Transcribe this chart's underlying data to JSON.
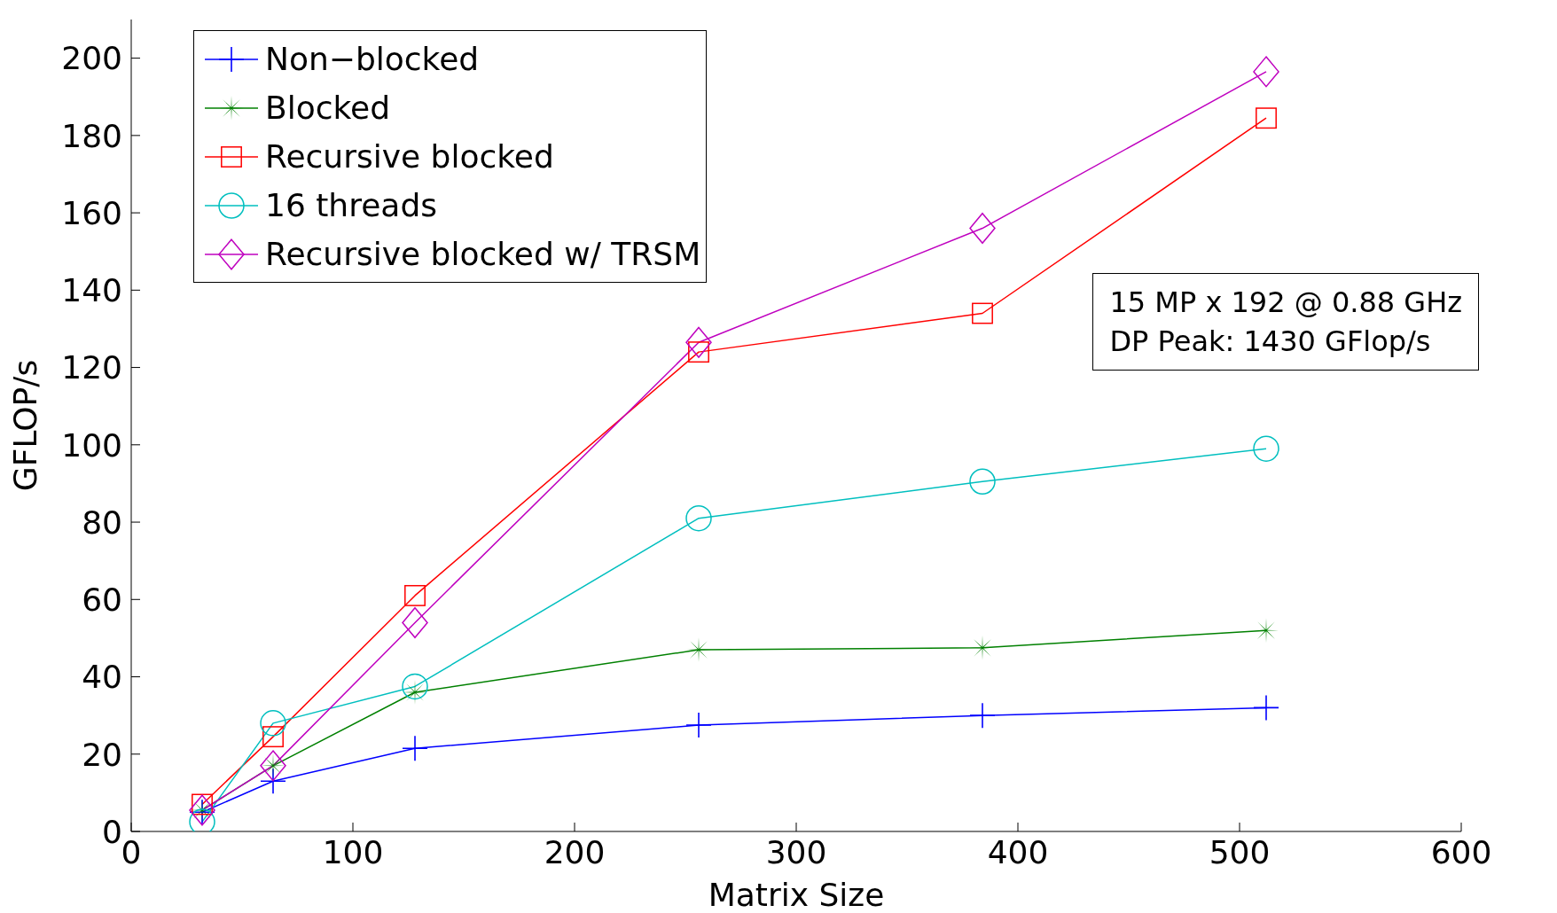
{
  "chart_data": {
    "type": "line",
    "xlabel": "Matrix Size",
    "ylabel": "GFLOP/s",
    "x": [
      32,
      64,
      128,
      256,
      384,
      512
    ],
    "series": [
      {
        "name": "Non−blocked",
        "color": "#0000ff",
        "marker": "cross",
        "values": [
          5,
          13,
          21.5,
          27.5,
          30,
          32
        ]
      },
      {
        "name": "Blocked",
        "color": "#008000",
        "marker": "star",
        "values": [
          5.5,
          17,
          36,
          47,
          47.5,
          52
        ]
      },
      {
        "name": "Recursive blocked",
        "color": "#ff0000",
        "marker": "square",
        "values": [
          7,
          24.5,
          61,
          124,
          134,
          184.5
        ]
      },
      {
        "name": "16 threads",
        "color": "#00bfbf",
        "marker": "circle",
        "values": [
          2.5,
          28,
          37.5,
          81,
          90.5,
          99
        ]
      },
      {
        "name": "Recursive blocked w/ TRSM",
        "color": "#bf00bf",
        "marker": "diamond",
        "values": [
          5.5,
          17,
          54,
          126.5,
          156,
          196.5
        ]
      }
    ],
    "xlim": [
      0,
      600
    ],
    "xticks": [
      0,
      100,
      200,
      300,
      400,
      500,
      600
    ],
    "ylim": [
      0,
      210
    ],
    "yticks": [
      0,
      20,
      40,
      60,
      80,
      100,
      120,
      140,
      160,
      180,
      200
    ],
    "grid": false,
    "legend": "top left",
    "line_style": "solid",
    "annotations": [
      "15 MP x 192 @ 0.88 GHz",
      "DP Peak: 1430 GFlop/s"
    ]
  }
}
